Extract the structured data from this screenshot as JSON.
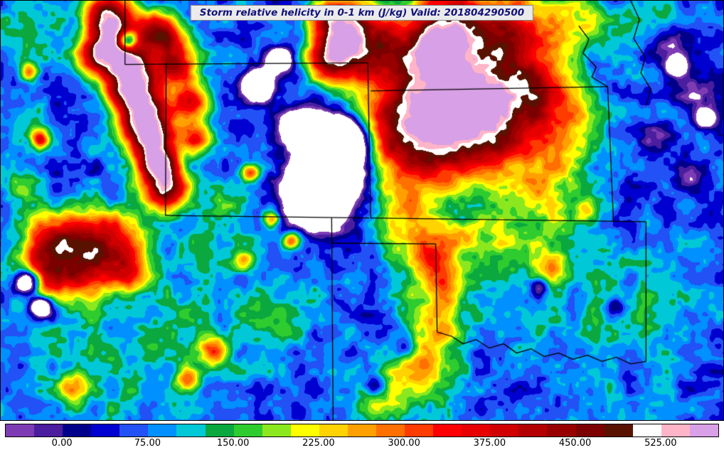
{
  "title": {
    "text": "Storm relative helicity in 0-1 km (J/kg) Valid: 201804290500"
  },
  "chart_data": {
    "type": "heatmap",
    "title": "Storm relative helicity in 0-1 km (J/kg)",
    "valid_time": "201804290500",
    "units": "J/kg",
    "colorbar": {
      "levels": [
        -50,
        -25,
        0,
        25,
        50,
        75,
        100,
        125,
        150,
        175,
        200,
        225,
        250,
        275,
        300,
        325,
        350,
        375,
        400,
        425,
        450,
        475,
        500,
        525,
        550,
        575
      ],
      "colors": [
        "#7d3cb4",
        "#4a1e9e",
        "#00008b",
        "#0000d0",
        "#2251f5",
        "#0090ff",
        "#00c8d7",
        "#0aa83e",
        "#2ecc2e",
        "#8ce81e",
        "#ffff00",
        "#ffd200",
        "#ffa000",
        "#ff7000",
        "#ff3c00",
        "#ff0000",
        "#e80000",
        "#d00000",
        "#b40000",
        "#980000",
        "#7c0000",
        "#5a1200",
        "#ffffff",
        "#ffb4c8",
        "#d8a0e6"
      ],
      "below_min_color": "#ffffff",
      "tick_values": [
        0,
        75,
        150,
        225,
        300,
        375,
        450,
        525
      ],
      "tick_labels": [
        "0.00",
        "75.00",
        "150.00",
        "225.00",
        "300.00",
        "375.00",
        "450.00",
        "525.00"
      ]
    },
    "field": {
      "base": 60,
      "noise": [
        {
          "scale": 26,
          "amp": 40,
          "seed": 101
        },
        {
          "scale": 9,
          "amp": 24,
          "seed": 202
        }
      ],
      "blobs": [
        [
          0.148,
          0.035,
          0.032,
          400
        ],
        [
          0.163,
          0.105,
          0.036,
          405
        ],
        [
          0.178,
          0.175,
          0.036,
          400
        ],
        [
          0.192,
          0.245,
          0.036,
          405
        ],
        [
          0.205,
          0.315,
          0.034,
          395
        ],
        [
          0.216,
          0.385,
          0.032,
          390
        ],
        [
          0.228,
          0.45,
          0.03,
          370
        ],
        [
          0.222,
          0.075,
          0.03,
          350
        ],
        [
          0.243,
          0.15,
          0.028,
          330
        ],
        [
          0.262,
          0.24,
          0.026,
          310
        ],
        [
          0.128,
          0.13,
          0.024,
          290
        ],
        [
          0.27,
          0.33,
          0.022,
          270
        ],
        [
          0.462,
          0.045,
          0.036,
          330
        ],
        [
          0.498,
          0.1,
          0.045,
          360
        ],
        [
          0.455,
          0.14,
          0.03,
          280
        ],
        [
          0.595,
          0.22,
          0.095,
          270
        ],
        [
          0.662,
          0.155,
          0.085,
          250
        ],
        [
          0.558,
          0.33,
          0.065,
          225
        ],
        [
          0.628,
          0.33,
          0.06,
          235
        ],
        [
          0.7,
          0.285,
          0.06,
          205
        ],
        [
          0.748,
          0.205,
          0.052,
          195
        ],
        [
          0.582,
          0.12,
          0.045,
          160
        ],
        [
          0.622,
          0.04,
          0.05,
          240
        ],
        [
          0.718,
          0.06,
          0.048,
          200
        ],
        [
          0.798,
          0.055,
          0.04,
          150
        ],
        [
          0.792,
          0.32,
          0.05,
          160
        ],
        [
          0.755,
          0.42,
          0.045,
          115
        ],
        [
          0.9,
          0.04,
          0.05,
          90
        ],
        [
          0.565,
          0.52,
          0.048,
          160
        ],
        [
          0.592,
          0.605,
          0.042,
          170
        ],
        [
          0.612,
          0.68,
          0.04,
          150
        ],
        [
          0.6,
          0.78,
          0.042,
          160
        ],
        [
          0.585,
          0.885,
          0.042,
          150
        ],
        [
          0.535,
          0.95,
          0.045,
          140
        ],
        [
          0.64,
          0.56,
          0.02,
          120
        ],
        [
          0.7,
          0.47,
          0.06,
          90
        ],
        [
          0.762,
          0.55,
          0.055,
          75
        ],
        [
          0.682,
          0.61,
          0.05,
          85
        ],
        [
          0.82,
          0.8,
          0.1,
          45
        ],
        [
          0.9,
          0.7,
          0.08,
          40
        ],
        [
          0.762,
          0.64,
          0.02,
          150
        ],
        [
          0.808,
          0.5,
          0.018,
          140
        ],
        [
          0.075,
          0.57,
          0.045,
          270
        ],
        [
          0.115,
          0.625,
          0.048,
          290
        ],
        [
          0.155,
          0.56,
          0.04,
          245
        ],
        [
          0.052,
          0.66,
          0.035,
          235
        ],
        [
          0.18,
          0.64,
          0.03,
          195
        ],
        [
          0.15,
          0.85,
          0.12,
          55
        ],
        [
          0.3,
          0.75,
          0.1,
          40
        ],
        [
          0.295,
          0.832,
          0.02,
          215
        ],
        [
          0.258,
          0.905,
          0.018,
          200
        ],
        [
          0.1,
          0.92,
          0.02,
          185
        ],
        [
          0.335,
          0.62,
          0.015,
          205
        ],
        [
          0.402,
          0.57,
          0.012,
          220
        ],
        [
          0.345,
          0.41,
          0.012,
          255
        ],
        [
          0.375,
          0.52,
          0.012,
          235
        ],
        [
          0.04,
          0.06,
          0.05,
          70
        ],
        [
          0.025,
          0.3,
          0.04,
          60
        ],
        [
          0.025,
          0.45,
          0.03,
          90
        ],
        [
          0.055,
          0.33,
          0.012,
          255
        ],
        [
          0.04,
          0.17,
          0.012,
          235
        ],
        [
          0.3,
          0.5,
          0.05,
          80
        ],
        [
          0.4,
          0.75,
          0.06,
          50
        ],
        [
          0.455,
          0.4,
          0.042,
          -700
        ],
        [
          0.435,
          0.47,
          0.036,
          -650
        ],
        [
          0.47,
          0.33,
          0.03,
          -600
        ],
        [
          0.415,
          0.3,
          0.022,
          -500
        ],
        [
          0.355,
          0.2,
          0.02,
          -460
        ],
        [
          0.385,
          0.14,
          0.016,
          -420
        ],
        [
          0.175,
          0.095,
          0.014,
          -420
        ],
        [
          0.035,
          0.67,
          0.018,
          -460
        ],
        [
          0.055,
          0.73,
          0.015,
          -420
        ],
        [
          0.925,
          0.1,
          0.03,
          -130
        ],
        [
          0.958,
          0.22,
          0.028,
          -110
        ],
        [
          0.905,
          0.33,
          0.022,
          -85
        ],
        [
          0.952,
          0.42,
          0.018,
          -75
        ],
        [
          0.935,
          0.155,
          0.012,
          -320
        ],
        [
          0.975,
          0.28,
          0.012,
          -300
        ],
        [
          0.745,
          0.68,
          0.012,
          -130
        ],
        [
          0.85,
          0.73,
          0.012,
          -115
        ],
        [
          0.56,
          0.83,
          0.014,
          -140
        ],
        [
          0.52,
          0.92,
          0.015,
          -150
        ]
      ]
    },
    "map_borders": [
      [
        [
          0.172,
          0.0
        ],
        [
          0.172,
          0.152
        ]
      ],
      [
        [
          0.172,
          0.152
        ],
        [
          0.508,
          0.148
        ]
      ],
      [
        [
          0.229,
          0.148
        ],
        [
          0.228,
          0.512
        ]
      ],
      [
        [
          0.228,
          0.512
        ],
        [
          0.51,
          0.518
        ]
      ],
      [
        [
          0.508,
          0.148
        ],
        [
          0.512,
          0.518
        ]
      ],
      [
        [
          0.512,
          0.215
        ],
        [
          0.84,
          0.205
        ]
      ],
      [
        [
          0.512,
          0.518
        ],
        [
          0.893,
          0.527
        ]
      ],
      [
        [
          0.84,
          0.205
        ],
        [
          0.848,
          0.527
        ]
      ],
      [
        [
          0.8,
          0.06
        ],
        [
          0.814,
          0.092
        ],
        [
          0.806,
          0.125
        ],
        [
          0.824,
          0.158
        ],
        [
          0.818,
          0.182
        ],
        [
          0.84,
          0.205
        ]
      ],
      [
        [
          0.872,
          0.0
        ],
        [
          0.884,
          0.045
        ],
        [
          0.876,
          0.09
        ],
        [
          0.892,
          0.135
        ],
        [
          0.886,
          0.172
        ],
        [
          0.9,
          0.212
        ],
        [
          0.893,
          0.25
        ]
      ],
      [
        [
          0.458,
          0.518
        ],
        [
          0.46,
          1.0
        ]
      ],
      [
        [
          0.458,
          0.578
        ],
        [
          0.602,
          0.58
        ]
      ],
      [
        [
          0.602,
          0.58
        ],
        [
          0.604,
          0.79
        ]
      ],
      [
        [
          0.604,
          0.79
        ],
        [
          0.624,
          0.8
        ],
        [
          0.64,
          0.818
        ],
        [
          0.658,
          0.808
        ],
        [
          0.676,
          0.828
        ],
        [
          0.696,
          0.818
        ],
        [
          0.714,
          0.84
        ],
        [
          0.734,
          0.83
        ],
        [
          0.752,
          0.848
        ],
        [
          0.772,
          0.84
        ],
        [
          0.792,
          0.855
        ],
        [
          0.812,
          0.845
        ],
        [
          0.832,
          0.86
        ],
        [
          0.852,
          0.85
        ],
        [
          0.872,
          0.866
        ],
        [
          0.893,
          0.86
        ]
      ],
      [
        [
          0.893,
          0.527
        ],
        [
          0.893,
          0.86
        ]
      ]
    ]
  }
}
